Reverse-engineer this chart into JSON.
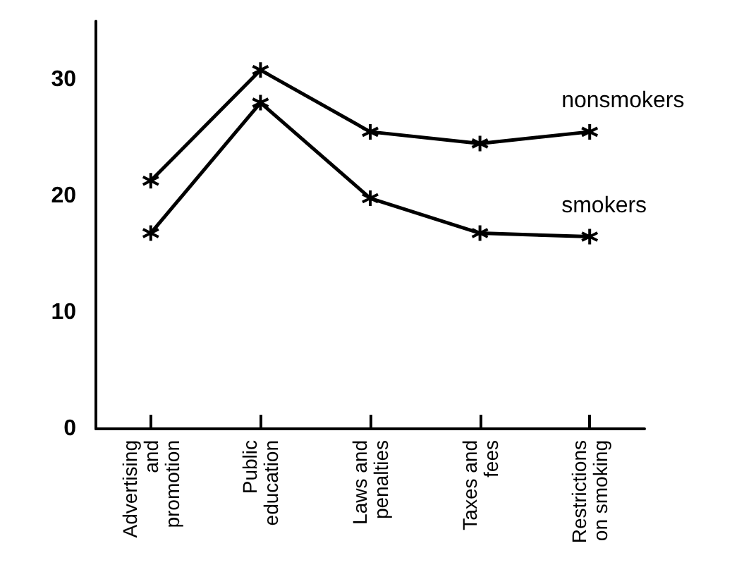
{
  "chart_data": {
    "type": "line",
    "categories": [
      "Advertising\nand\npromotion",
      "Public\neducation",
      "Laws and\npenalties",
      "Taxes and\nfees",
      "Restrictions\non smoking"
    ],
    "series": [
      {
        "name": "nonsmokers",
        "color": "#000000",
        "values": [
          21.3,
          30.8,
          25.5,
          24.5,
          25.5
        ]
      },
      {
        "name": "smokers",
        "color": "#000000",
        "values": [
          16.8,
          28.0,
          19.8,
          16.8,
          16.5
        ]
      }
    ],
    "ylim": [
      0,
      35
    ],
    "yticks": [
      0,
      10,
      20,
      30
    ],
    "grid": false,
    "legend": false,
    "marker": "cross",
    "line_style": "solid"
  }
}
